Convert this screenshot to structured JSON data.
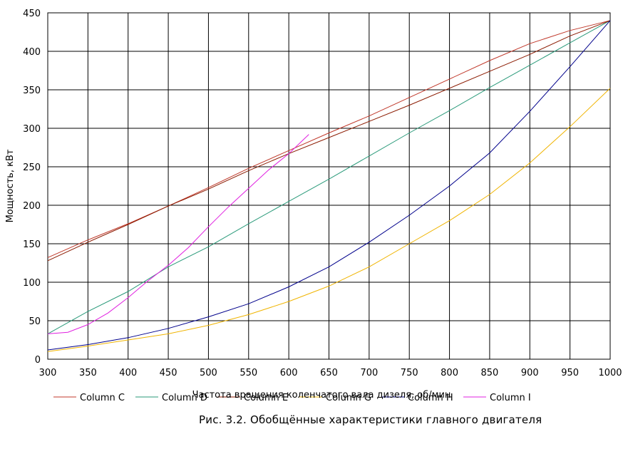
{
  "caption": "Рис. 3.2.   Обобщённые характеристики главного двигателя",
  "chart_data": {
    "type": "line",
    "title": "",
    "xlabel": "Частота вращения коленчатого вала дизеля, об/мин",
    "ylabel": "Мощность, кВт",
    "xlim": [
      300,
      1000
    ],
    "ylim": [
      0,
      450
    ],
    "x_ticks": [
      300,
      350,
      400,
      450,
      500,
      550,
      600,
      650,
      700,
      750,
      800,
      850,
      900,
      950,
      1000
    ],
    "y_ticks": [
      0,
      50,
      100,
      150,
      200,
      250,
      300,
      350,
      400,
      450
    ],
    "grid": true,
    "legend_position": "bottom",
    "series": [
      {
        "name": "Column C",
        "color": "#c0392b",
        "x": [
          300,
          350,
          400,
          450,
          500,
          550,
          600,
          650,
          700,
          750,
          800,
          850,
          900,
          950,
          1000
        ],
        "y": [
          132,
          155,
          176,
          199,
          223,
          248,
          271,
          294,
          316,
          340,
          364,
          388,
          410,
          427,
          440
        ]
      },
      {
        "name": "Column D",
        "color": "#2a9a7a",
        "x": [
          300,
          350,
          400,
          450,
          500,
          550,
          600,
          650,
          700,
          750,
          800,
          850,
          900,
          950,
          1000
        ],
        "y": [
          33,
          62,
          88,
          120,
          146,
          176,
          205,
          234,
          264,
          294,
          323,
          353,
          382,
          411,
          440
        ]
      },
      {
        "name": "Column E",
        "color": "#8b1a00",
        "x": [
          300,
          350,
          400,
          450,
          500,
          550,
          600,
          650,
          700,
          750,
          800,
          850,
          900,
          950,
          1000
        ],
        "y": [
          128,
          152,
          175,
          199,
          221,
          245,
          267,
          288,
          309,
          330,
          352,
          374,
          396,
          420,
          440
        ]
      },
      {
        "name": "Column G",
        "color": "#f0b400",
        "x": [
          300,
          350,
          400,
          450,
          500,
          550,
          600,
          650,
          700,
          750,
          800,
          850,
          900,
          950,
          1000
        ],
        "y": [
          10,
          17,
          25,
          33,
          44,
          58,
          75,
          95,
          120,
          150,
          180,
          214,
          255,
          302,
          352
        ]
      },
      {
        "name": "Column H",
        "color": "#00008b",
        "x": [
          300,
          350,
          400,
          450,
          500,
          550,
          600,
          650,
          700,
          750,
          800,
          850,
          900,
          950,
          1000
        ],
        "y": [
          12,
          19,
          28,
          40,
          55,
          72,
          94,
          120,
          152,
          187,
          225,
          268,
          322,
          380,
          440
        ]
      },
      {
        "name": "Column I",
        "color": "#e020e0",
        "x": [
          300,
          325,
          350,
          375,
          400,
          425,
          450,
          475,
          500,
          525,
          550,
          575,
          600,
          625
        ],
        "y": [
          33,
          35,
          45,
          60,
          80,
          102,
          122,
          145,
          172,
          198,
          222,
          246,
          267,
          292
        ]
      }
    ]
  }
}
